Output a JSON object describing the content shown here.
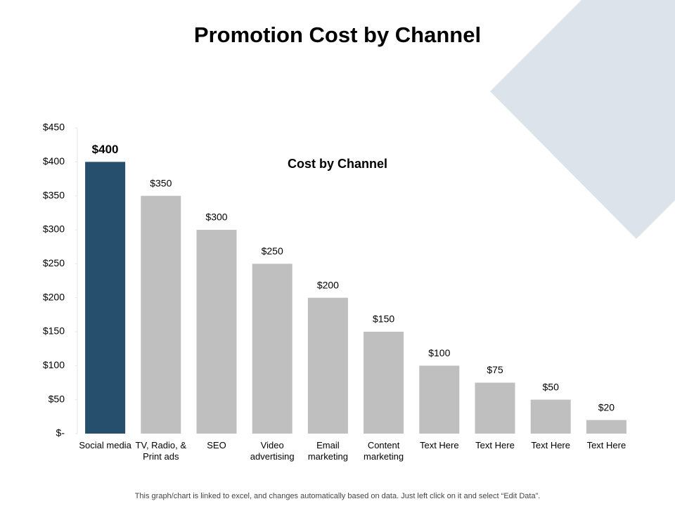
{
  "chart_data": {
    "type": "bar",
    "title": "Promotion Cost by Channel",
    "subtitle": "Cost by Channel",
    "categories": [
      "Social media",
      "TV, Radio, & Print ads",
      "SEO",
      "Video advertising",
      "Email marketing",
      "Content marketing",
      "Text Here",
      "Text Here",
      "Text Here",
      "Text Here"
    ],
    "values": [
      400,
      350,
      300,
      250,
      200,
      150,
      100,
      75,
      50,
      20
    ],
    "value_labels": [
      "$400",
      "$350",
      "$300",
      "$250",
      "$200",
      "$150",
      "$100",
      "$75",
      "$50",
      "$20"
    ],
    "colors": [
      "#264f6e",
      "#bfbfbf",
      "#bfbfbf",
      "#bfbfbf",
      "#bfbfbf",
      "#bfbfbf",
      "#bfbfbf",
      "#bfbfbf",
      "#bfbfbf",
      "#bfbfbf"
    ],
    "ylim": [
      0,
      450
    ],
    "yticks": [
      {
        "value": 0,
        "label": "$-"
      },
      {
        "value": 50,
        "label": "$50"
      },
      {
        "value": 100,
        "label": "$100"
      },
      {
        "value": 150,
        "label": "$150"
      },
      {
        "value": 200,
        "label": "$200"
      },
      {
        "value": 250,
        "label": "$250"
      },
      {
        "value": 300,
        "label": "$300"
      },
      {
        "value": 350,
        "label": "$350"
      },
      {
        "value": 400,
        "label": "$400"
      },
      {
        "value": 450,
        "label": "$450"
      }
    ],
    "grid": false,
    "footnote": "This graph/chart is linked to excel, and changes automatically based on data. Just left click on it and select “Edit Data”."
  }
}
